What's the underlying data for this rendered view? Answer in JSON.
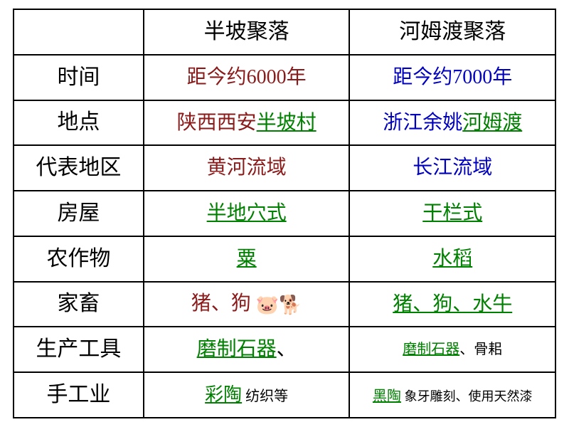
{
  "colors": {
    "black": "#000000",
    "darkred": "#8b1a1a",
    "green": "#008000",
    "blue": "#0000c0"
  },
  "header": {
    "blank": "",
    "col_a": "半坡聚落",
    "col_b": "河姆渡聚落"
  },
  "rows": {
    "time": {
      "label": "时间",
      "a": "距今约6000年",
      "b": "距今约7000年"
    },
    "place": {
      "label": "地点",
      "a_prefix": "陕西西安",
      "a_link": "半坡村",
      "b_prefix": "浙江余姚",
      "b_link": "河姆渡"
    },
    "region": {
      "label": "代表地区",
      "a": "黄河流域",
      "b": "长江流域"
    },
    "house": {
      "label": "房屋",
      "a": "半地穴式",
      "b": "干栏式"
    },
    "crop": {
      "label": "农作物",
      "a": "粟",
      "b": "水稻"
    },
    "animal": {
      "label": "家畜",
      "a_text": "猪、狗",
      "a_icons": "🐷🐕",
      "b": "猪、狗、水牛"
    },
    "tool": {
      "label": "生产工具",
      "a_link": "磨制石器",
      "a_suffix": "、",
      "b_link": "磨制石器",
      "b_suffix": "、骨耜"
    },
    "craft": {
      "label": "手工业",
      "a_link": "彩陶",
      "a_suffix": " 纺织等",
      "b_link": "黑陶",
      "b_suffix": " 象牙雕刻、使用天然漆"
    }
  }
}
